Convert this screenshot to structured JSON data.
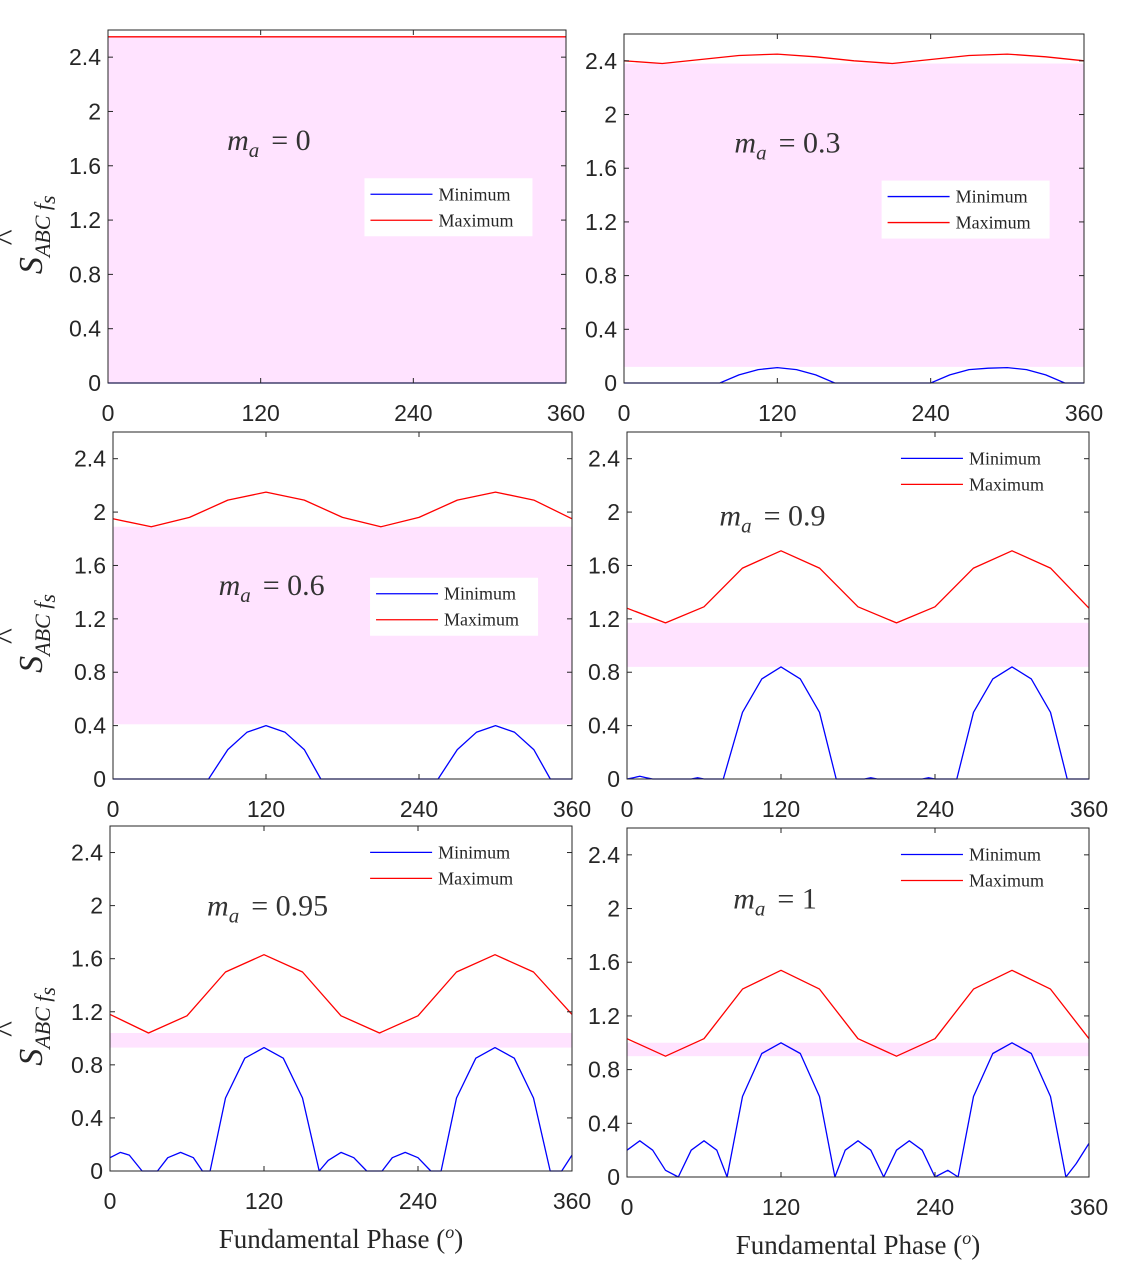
{
  "chart_data": [
    {
      "type": "line",
      "annotation": {
        "var": "m",
        "sub": "a",
        "eq": "= 0"
      },
      "xlim": [
        0,
        360
      ],
      "ylim": [
        0,
        2.6
      ],
      "xticks": [
        "0",
        "120",
        "240",
        "360"
      ],
      "yticks": [
        "0",
        "0.4",
        "0.8",
        "1.2",
        "1.6",
        "2",
        "2.4"
      ],
      "ylabel": {
        "main": "S",
        "sub": "ABC f",
        "subsub": "s",
        "hat": "^"
      },
      "xlabel": "",
      "legend": {
        "position": "center-right",
        "entries": [
          "Minimum",
          "Maximum"
        ]
      },
      "band": [
        0,
        2.55
      ],
      "series": [
        {
          "name": "Minimum",
          "color": "#0000ff",
          "x": [
            0,
            360
          ],
          "y": [
            0,
            0
          ]
        },
        {
          "name": "Maximum",
          "color": "#ff0000",
          "x": [
            0,
            360
          ],
          "y": [
            2.55,
            2.55
          ]
        }
      ]
    },
    {
      "type": "line",
      "annotation": {
        "var": "m",
        "sub": "a",
        "eq": "= 0.3"
      },
      "xlim": [
        0,
        360
      ],
      "ylim": [
        0,
        2.6
      ],
      "xticks": [
        "0",
        "120",
        "240",
        "360"
      ],
      "yticks": [
        "0",
        "0.4",
        "0.8",
        "1.2",
        "1.6",
        "2",
        "2.4"
      ],
      "ylabel": null,
      "xlabel": "",
      "legend": {
        "position": "center-right",
        "entries": [
          "Minimum",
          "Maximum"
        ]
      },
      "band": [
        0.12,
        2.38
      ],
      "series": [
        {
          "name": "Minimum",
          "color": "#0000ff",
          "x": [
            0,
            75,
            90,
            105,
            120,
            135,
            150,
            165,
            240,
            255,
            270,
            285,
            300,
            315,
            330,
            345,
            360
          ],
          "y": [
            0,
            0,
            0.06,
            0.1,
            0.115,
            0.1,
            0.06,
            0,
            0,
            0.06,
            0.1,
            0.11,
            0.115,
            0.1,
            0.06,
            0,
            0
          ]
        },
        {
          "name": "Maximum",
          "color": "#ff0000",
          "x": [
            0,
            30,
            60,
            90,
            120,
            150,
            180,
            210,
            240,
            270,
            300,
            330,
            360
          ],
          "y": [
            2.4,
            2.38,
            2.41,
            2.44,
            2.45,
            2.43,
            2.4,
            2.38,
            2.41,
            2.44,
            2.45,
            2.43,
            2.4
          ]
        }
      ]
    },
    {
      "type": "line",
      "annotation": {
        "var": "m",
        "sub": "a",
        "eq": "= 0.6"
      },
      "xlim": [
        0,
        360
      ],
      "ylim": [
        0,
        2.6
      ],
      "xticks": [
        "0",
        "120",
        "240",
        "360"
      ],
      "yticks": [
        "0",
        "0.4",
        "0.8",
        "1.2",
        "1.6",
        "2",
        "2.4"
      ],
      "ylabel": {
        "main": "S",
        "sub": "ABC f",
        "subsub": "s",
        "hat": "^"
      },
      "xlabel": "",
      "legend": {
        "position": "center-right",
        "entries": [
          "Minimum",
          "Maximum"
        ]
      },
      "band": [
        0.41,
        1.89
      ],
      "series": [
        {
          "name": "Minimum",
          "color": "#0000ff",
          "x": [
            0,
            75,
            90,
            105,
            120,
            135,
            150,
            163,
            255,
            270,
            285,
            300,
            315,
            330,
            343,
            360
          ],
          "y": [
            0,
            0,
            0.22,
            0.35,
            0.4,
            0.35,
            0.22,
            0,
            0,
            0.22,
            0.35,
            0.4,
            0.35,
            0.22,
            0,
            0
          ]
        },
        {
          "name": "Maximum",
          "color": "#ff0000",
          "x": [
            0,
            30,
            60,
            90,
            120,
            150,
            180,
            210,
            240,
            270,
            300,
            330,
            360
          ],
          "y": [
            1.95,
            1.89,
            1.96,
            2.09,
            2.15,
            2.09,
            1.96,
            1.89,
            1.96,
            2.09,
            2.15,
            2.09,
            1.95
          ]
        }
      ]
    },
    {
      "type": "line",
      "annotation": {
        "var": "m",
        "sub": "a",
        "eq": "= 0.9"
      },
      "xlim": [
        0,
        360
      ],
      "ylim": [
        0,
        2.6
      ],
      "xticks": [
        "0",
        "120",
        "240",
        "360"
      ],
      "yticks": [
        "0",
        "0.4",
        "0.8",
        "1.2",
        "1.6",
        "2",
        "2.4"
      ],
      "ylabel": null,
      "xlabel": "",
      "legend": {
        "position": "top-right",
        "entries": [
          "Minimum",
          "Maximum"
        ]
      },
      "band": [
        0.84,
        1.17
      ],
      "series": [
        {
          "name": "Minimum",
          "color": "#0000ff",
          "x": [
            0,
            5,
            10,
            15,
            20,
            50,
            55,
            60,
            75,
            90,
            105,
            120,
            135,
            150,
            163,
            185,
            190,
            195,
            230,
            235,
            240,
            257,
            270,
            285,
            300,
            315,
            330,
            343,
            360
          ],
          "y": [
            0,
            0.01,
            0.02,
            0.01,
            0,
            0,
            0.01,
            0,
            0,
            0.5,
            0.75,
            0.84,
            0.75,
            0.5,
            0,
            0,
            0.01,
            0,
            0,
            0.01,
            0,
            0,
            0.5,
            0.75,
            0.84,
            0.75,
            0.5,
            0,
            0
          ]
        },
        {
          "name": "Maximum",
          "color": "#ff0000",
          "x": [
            0,
            30,
            60,
            90,
            120,
            150,
            180,
            210,
            240,
            270,
            300,
            330,
            360
          ],
          "y": [
            1.28,
            1.17,
            1.29,
            1.58,
            1.71,
            1.58,
            1.29,
            1.17,
            1.29,
            1.58,
            1.71,
            1.58,
            1.28
          ]
        }
      ]
    },
    {
      "type": "line",
      "annotation": {
        "var": "m",
        "sub": "a",
        "eq": "= 0.95"
      },
      "xlim": [
        0,
        360
      ],
      "ylim": [
        0,
        2.6
      ],
      "xticks": [
        "0",
        "120",
        "240",
        "360"
      ],
      "yticks": [
        "0",
        "0.4",
        "0.8",
        "1.2",
        "1.6",
        "2",
        "2.4"
      ],
      "ylabel": {
        "main": "S",
        "sub": "ABC f",
        "subsub": "s",
        "hat": "^"
      },
      "xlabel": "Fundamental Phase (o)",
      "legend": {
        "position": "top-right",
        "entries": [
          "Minimum",
          "Maximum"
        ]
      },
      "band": [
        0.93,
        1.04
      ],
      "series": [
        {
          "name": "Minimum",
          "color": "#0000ff",
          "x": [
            0,
            8,
            15,
            25,
            37,
            45,
            55,
            65,
            72,
            78,
            90,
            105,
            120,
            135,
            150,
            163,
            170,
            180,
            190,
            200,
            212,
            220,
            230,
            240,
            250,
            258,
            270,
            285,
            300,
            315,
            330,
            343,
            352,
            360
          ],
          "y": [
            0.1,
            0.14,
            0.12,
            0,
            0,
            0.1,
            0.14,
            0.1,
            0,
            0,
            0.55,
            0.85,
            0.93,
            0.85,
            0.55,
            0,
            0.08,
            0.14,
            0.1,
            0,
            0,
            0.1,
            0.14,
            0.1,
            0,
            0,
            0.55,
            0.85,
            0.93,
            0.85,
            0.55,
            0,
            0,
            0.12
          ]
        },
        {
          "name": "Maximum",
          "color": "#ff0000",
          "x": [
            0,
            30,
            60,
            90,
            120,
            150,
            180,
            210,
            240,
            270,
            300,
            330,
            360
          ],
          "y": [
            1.18,
            1.04,
            1.17,
            1.5,
            1.63,
            1.5,
            1.17,
            1.04,
            1.17,
            1.5,
            1.63,
            1.5,
            1.18
          ]
        }
      ]
    },
    {
      "type": "line",
      "annotation": {
        "var": "m",
        "sub": "a",
        "eq": "= 1"
      },
      "xlim": [
        0,
        360
      ],
      "ylim": [
        0,
        2.6
      ],
      "xticks": [
        "0",
        "120",
        "240",
        "360"
      ],
      "yticks": [
        "0",
        "0.4",
        "0.8",
        "1.2",
        "1.6",
        "2",
        "2.4"
      ],
      "ylabel": null,
      "xlabel": "Fundamental Phase (o)",
      "legend": {
        "position": "top-right",
        "entries": [
          "Minimum",
          "Maximum"
        ]
      },
      "band": [
        0.9,
        1.0
      ],
      "series": [
        {
          "name": "Minimum",
          "color": "#0000ff",
          "x": [
            0,
            10,
            20,
            30,
            40,
            50,
            60,
            70,
            78,
            90,
            105,
            120,
            135,
            150,
            162,
            170,
            180,
            190,
            200,
            210,
            220,
            230,
            240,
            250,
            258,
            270,
            285,
            300,
            315,
            330,
            342,
            350,
            360
          ],
          "y": [
            0.2,
            0.27,
            0.2,
            0.05,
            0,
            0.2,
            0.27,
            0.2,
            0,
            0.6,
            0.92,
            1.0,
            0.92,
            0.6,
            0,
            0.2,
            0.27,
            0.2,
            0,
            0.2,
            0.27,
            0.2,
            0,
            0.05,
            0,
            0.6,
            0.92,
            1.0,
            0.92,
            0.6,
            0,
            0.1,
            0.25
          ]
        },
        {
          "name": "Maximum",
          "color": "#ff0000",
          "x": [
            0,
            30,
            60,
            90,
            120,
            150,
            180,
            210,
            240,
            270,
            300,
            330,
            360
          ],
          "y": [
            1.03,
            0.9,
            1.03,
            1.4,
            1.54,
            1.4,
            1.03,
            0.9,
            1.03,
            1.4,
            1.54,
            1.4,
            1.03
          ]
        }
      ]
    }
  ]
}
